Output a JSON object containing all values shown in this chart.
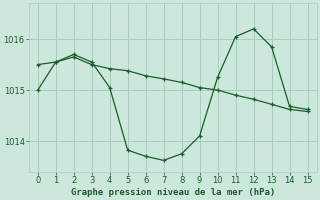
{
  "title": "Graphe pression niveau de la mer (hPa)",
  "background_color": "#cce8dc",
  "grid_color": "#aaccbb",
  "line_color": "#1a5c2a",
  "xlim": [
    -0.5,
    15.5
  ],
  "ylim": [
    1013.4,
    1016.7
  ],
  "yticks": [
    1014,
    1015,
    1016
  ],
  "xticks": [
    0,
    1,
    2,
    3,
    4,
    5,
    6,
    7,
    8,
    9,
    10,
    11,
    12,
    13,
    14,
    15
  ],
  "curve1_x": [
    0,
    1,
    2,
    3,
    4,
    5,
    6,
    7,
    8,
    9,
    10,
    11,
    12,
    13,
    14,
    15
  ],
  "curve1_y": [
    1015.0,
    1015.55,
    1015.7,
    1015.55,
    1015.05,
    1013.82,
    1013.7,
    1013.62,
    1013.75,
    1014.1,
    1015.25,
    1016.05,
    1016.2,
    1015.85,
    1014.68,
    1014.62
  ],
  "curve2_x": [
    0,
    1,
    2,
    3,
    4,
    5,
    6,
    7,
    8,
    9,
    10,
    11,
    12,
    13,
    14,
    15
  ],
  "curve2_y": [
    1015.5,
    1015.55,
    1015.65,
    1015.5,
    1015.42,
    1015.38,
    1015.28,
    1015.22,
    1015.15,
    1015.05,
    1015.0,
    1014.9,
    1014.82,
    1014.72,
    1014.62,
    1014.58
  ],
  "xlabel_fontsize": 6.5,
  "tick_fontsize": 6.0
}
